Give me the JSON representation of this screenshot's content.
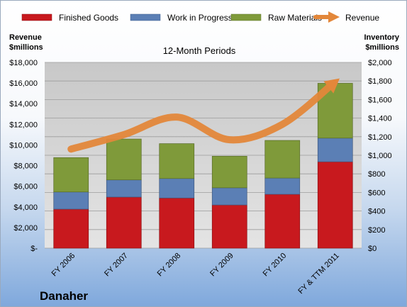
{
  "chart_data": {
    "type": "bar",
    "stacked": true,
    "title": "12-Month Periods",
    "company": "Danaher",
    "categories": [
      "FY 2006",
      "FY 2007",
      "FY 2008",
      "FY 2009",
      "FY 2010",
      "FY & TTM 2011"
    ],
    "series": [
      {
        "name": "Finished Goods",
        "axis": "right",
        "color": "#c8191e",
        "values": [
          420,
          550,
          540,
          465,
          580,
          930
        ]
      },
      {
        "name": "Work in Progress",
        "axis": "right",
        "color": "#5b7fb5",
        "values": [
          185,
          185,
          210,
          185,
          175,
          255
        ]
      },
      {
        "name": "Raw Materials",
        "axis": "right",
        "color": "#7f9a3a",
        "values": [
          370,
          440,
          375,
          340,
          405,
          590
        ]
      }
    ],
    "line_series": {
      "name": "Revenue",
      "axis": "left",
      "color": "#e3873a",
      "values": [
        9600,
        11000,
        12700,
        10500,
        12000,
        16100
      ]
    },
    "left_axis": {
      "label_line1": "Revenue",
      "label_line2": "$millions",
      "range": [
        0,
        18000
      ],
      "ticks": [
        "$-",
        "$2,000",
        "$4,000",
        "$6,000",
        "$8,000",
        "$10,000",
        "$12,000",
        "$14,000",
        "$16,000",
        "$18,000"
      ]
    },
    "right_axis": {
      "label_line1": "Inventory",
      "label_line2": "$millions",
      "range": [
        0,
        2000
      ],
      "ticks": [
        "$0",
        "$200",
        "$400",
        "$600",
        "$800",
        "$1,000",
        "$1,200",
        "$1,400",
        "$1,600",
        "$1,800",
        "$2,000"
      ]
    },
    "legend_position": "top",
    "grid": true
  }
}
